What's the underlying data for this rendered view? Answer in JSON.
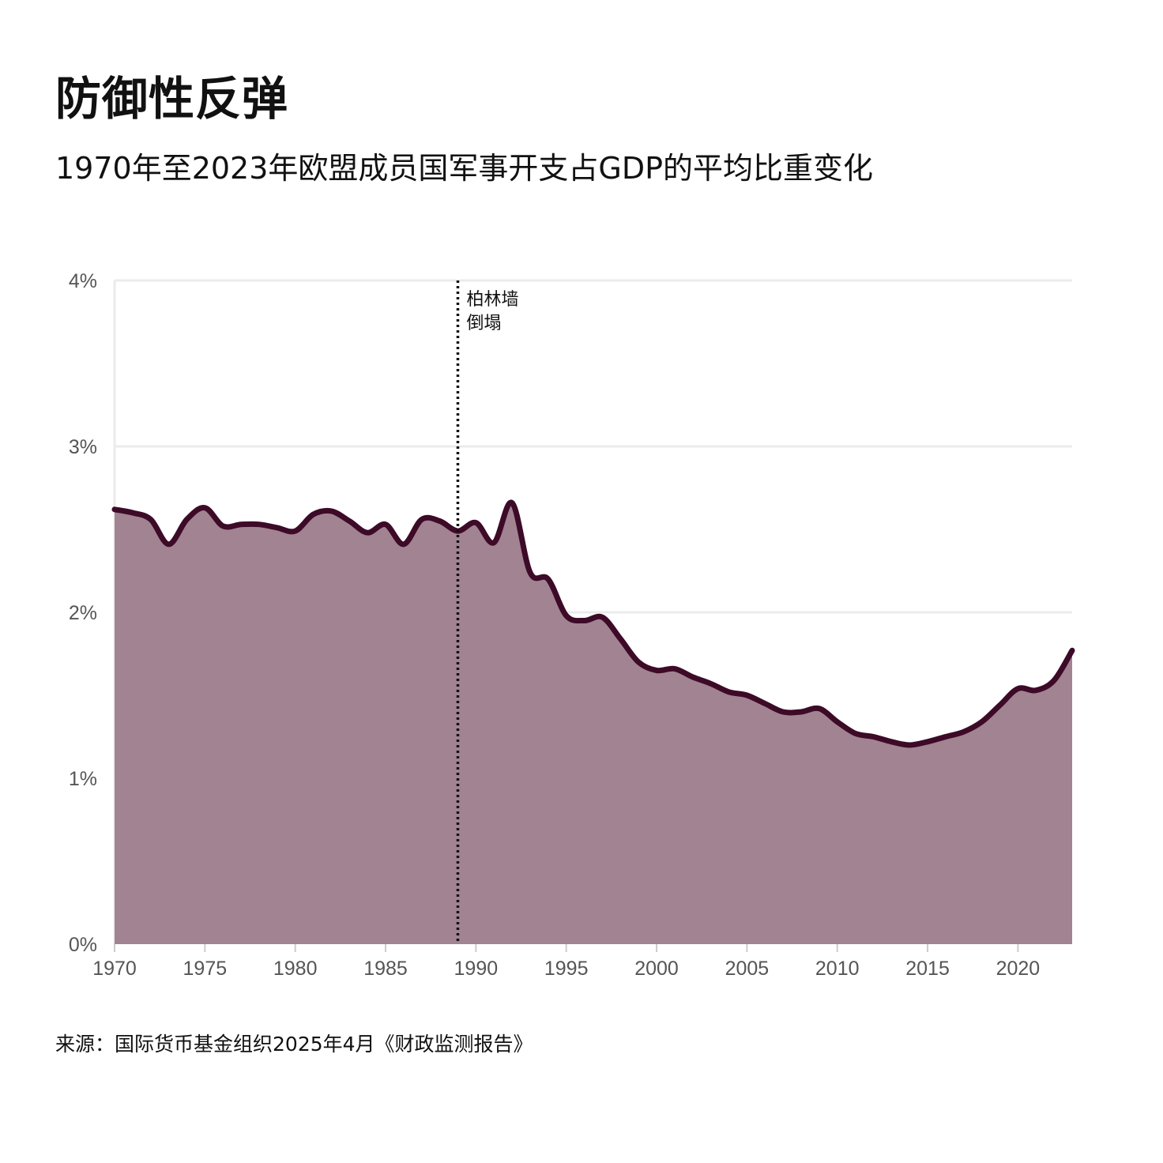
{
  "title": "防御性反弹",
  "subtitle": "1970年至2023年欧盟成员国军事开支占GDP的平均比重变化",
  "source": "来源：国际货币基金组织2025年4月《财政监测报告》",
  "colors": {
    "line": "#3d0a28",
    "area": "#a28391",
    "grid": "#ebebeb",
    "tick_text": "#555555"
  },
  "chart_data": {
    "type": "area",
    "title": "防御性反弹",
    "subtitle": "1970年至2023年欧盟成员国军事开支占GDP的平均比重变化",
    "xlabel": "",
    "ylabel": "",
    "xlim": [
      1970,
      2023
    ],
    "ylim": [
      0,
      4
    ],
    "grid": true,
    "legend": "none",
    "x_ticks": [
      "1970",
      "1975",
      "1980",
      "1985",
      "1990",
      "1995",
      "2000",
      "2005",
      "2010",
      "2015",
      "2020"
    ],
    "y_ticks": [
      "0%",
      "1%",
      "2%",
      "3%",
      "4%"
    ],
    "annotation": {
      "x": 1989,
      "lines": [
        "柏林墙",
        "倒塌"
      ]
    },
    "series": [
      {
        "x": [
          1970,
          1971,
          1972,
          1973,
          1974,
          1975,
          1976,
          1977,
          1978,
          1979,
          1980,
          1981,
          1982,
          1983,
          1984,
          1985,
          1986,
          1987,
          1988,
          1989,
          1990,
          1991,
          1992,
          1993,
          1994,
          1995,
          1996,
          1997,
          1998,
          1999,
          2000,
          2001,
          2002,
          2003,
          2004,
          2005,
          2006,
          2007,
          2008,
          2009,
          2010,
          2011,
          2012,
          2013,
          2014,
          2015,
          2016,
          2017,
          2018,
          2019,
          2020,
          2021,
          2022,
          2023
        ],
        "values": [
          2.62,
          2.6,
          2.56,
          2.41,
          2.56,
          2.63,
          2.52,
          2.53,
          2.53,
          2.51,
          2.49,
          2.59,
          2.61,
          2.55,
          2.48,
          2.53,
          2.41,
          2.56,
          2.55,
          2.49,
          2.54,
          2.42,
          2.66,
          2.24,
          2.2,
          1.98,
          1.95,
          1.97,
          1.84,
          1.7,
          1.65,
          1.66,
          1.61,
          1.57,
          1.52,
          1.5,
          1.45,
          1.4,
          1.4,
          1.42,
          1.34,
          1.27,
          1.25,
          1.22,
          1.2,
          1.22,
          1.25,
          1.28,
          1.34,
          1.44,
          1.54,
          1.53,
          1.59,
          1.77
        ]
      }
    ]
  }
}
